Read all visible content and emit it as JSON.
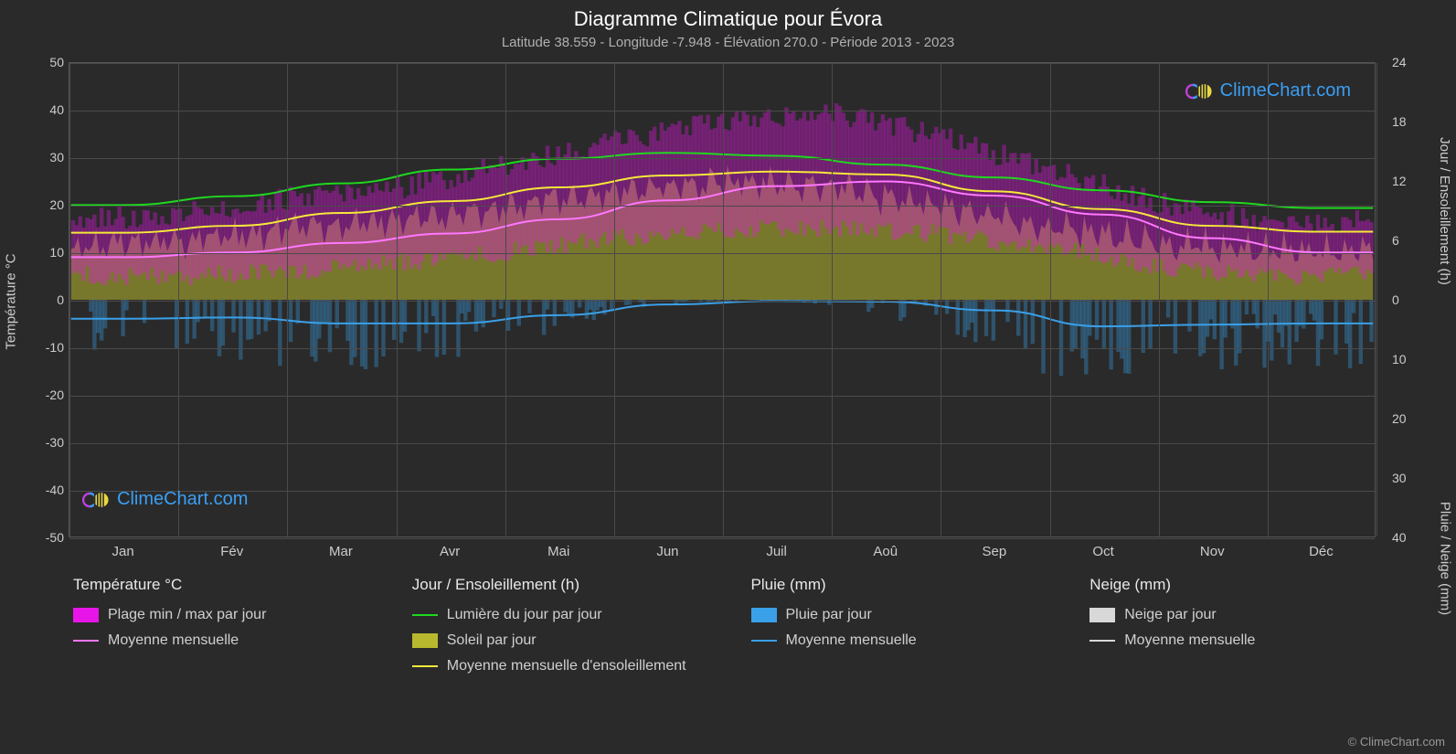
{
  "title": "Diagramme Climatique pour Évora",
  "subtitle": "Latitude 38.559 - Longitude -7.948 - Élévation 270.0 - Période 2013 - 2023",
  "copyright": "© ClimeChart.com",
  "watermark_text": "ClimeChart.com",
  "axes": {
    "left": {
      "title": "Température °C",
      "ylim": [
        -50,
        50
      ],
      "ticks": [
        -50,
        -40,
        -30,
        -20,
        -10,
        0,
        10,
        20,
        30,
        40,
        50
      ]
    },
    "right_top": {
      "title": "Jour / Ensoleillement (h)",
      "ylim": [
        0,
        24
      ],
      "ticks": [
        0,
        6,
        12,
        18,
        24
      ]
    },
    "right_bottom": {
      "title": "Pluie / Neige (mm)",
      "ylim": [
        0,
        40
      ],
      "ticks": [
        0,
        10,
        20,
        30,
        40
      ]
    },
    "x": {
      "months": [
        "Jan",
        "Fév",
        "Mar",
        "Avr",
        "Mai",
        "Jun",
        "Juil",
        "Aoû",
        "Sep",
        "Oct",
        "Nov",
        "Déc"
      ]
    }
  },
  "plot": {
    "background_color": "#2a2a2a",
    "grid_color": "#4a4a4a"
  },
  "series": {
    "temp_range": {
      "type": "area_band",
      "color": "#e815e8",
      "opacity": 0.55,
      "min_per_month": [
        5,
        5,
        6,
        8,
        10,
        13,
        15,
        15,
        14,
        11,
        7,
        5
      ],
      "max_per_month": [
        15,
        17,
        20,
        22,
        27,
        32,
        36,
        38,
        33,
        26,
        19,
        15
      ],
      "noise_alpha": 0.35
    },
    "temp_avg": {
      "type": "line",
      "color": "#ff77ff",
      "width": 2,
      "values": [
        9,
        10,
        12,
        14,
        17,
        21,
        24,
        25,
        22,
        18,
        13,
        10
      ]
    },
    "daylight": {
      "type": "line",
      "color": "#1fd81f",
      "width": 2,
      "values_hours": [
        9.6,
        10.5,
        11.8,
        13.2,
        14.3,
        14.9,
        14.6,
        13.7,
        12.4,
        11.1,
        9.9,
        9.3
      ]
    },
    "sunshine_daily": {
      "type": "area",
      "color": "#b8b82e",
      "opacity": 0.55,
      "values_hours": [
        5.3,
        6.0,
        7.0,
        8.1,
        9.4,
        11.0,
        12.0,
        11.5,
        9.5,
        7.3,
        5.8,
        5.0
      ]
    },
    "sunshine_avg": {
      "type": "line",
      "color": "#f5e83a",
      "width": 2,
      "values_hours": [
        6.8,
        7.5,
        8.8,
        10.0,
        11.4,
        12.6,
        13.0,
        12.7,
        11.0,
        9.2,
        7.5,
        6.9
      ]
    },
    "rain_avg": {
      "type": "line",
      "color": "#3aa0e8",
      "width": 2,
      "values_mm": [
        3.2,
        3.0,
        4.0,
        4.0,
        2.6,
        0.8,
        0.2,
        0.3,
        1.8,
        4.5,
        4.2,
        4.0
      ]
    },
    "rain_daily": {
      "type": "bars_down",
      "color": "#3aa0e8",
      "opacity": 0.35,
      "max_mm": 16
    }
  },
  "legend": {
    "col1": {
      "header": "Température °C",
      "items": [
        {
          "kind": "box",
          "color": "#e815e8",
          "label": "Plage min / max par jour"
        },
        {
          "kind": "line",
          "color": "#ff77ff",
          "label": "Moyenne mensuelle"
        }
      ]
    },
    "col2": {
      "header": "Jour / Ensoleillement (h)",
      "items": [
        {
          "kind": "line",
          "color": "#1fd81f",
          "label": "Lumière du jour par jour"
        },
        {
          "kind": "box",
          "color": "#b8b82e",
          "label": "Soleil par jour"
        },
        {
          "kind": "line",
          "color": "#f5e83a",
          "label": "Moyenne mensuelle d'ensoleillement"
        }
      ]
    },
    "col3": {
      "header": "Pluie (mm)",
      "items": [
        {
          "kind": "box",
          "color": "#3aa0e8",
          "label": "Pluie par jour"
        },
        {
          "kind": "line",
          "color": "#3aa0e8",
          "label": "Moyenne mensuelle"
        }
      ]
    },
    "col4": {
      "header": "Neige (mm)",
      "items": [
        {
          "kind": "box",
          "color": "#d8d8d8",
          "label": "Neige par jour"
        },
        {
          "kind": "line",
          "color": "#d8d8d8",
          "label": "Moyenne mensuelle"
        }
      ]
    }
  }
}
